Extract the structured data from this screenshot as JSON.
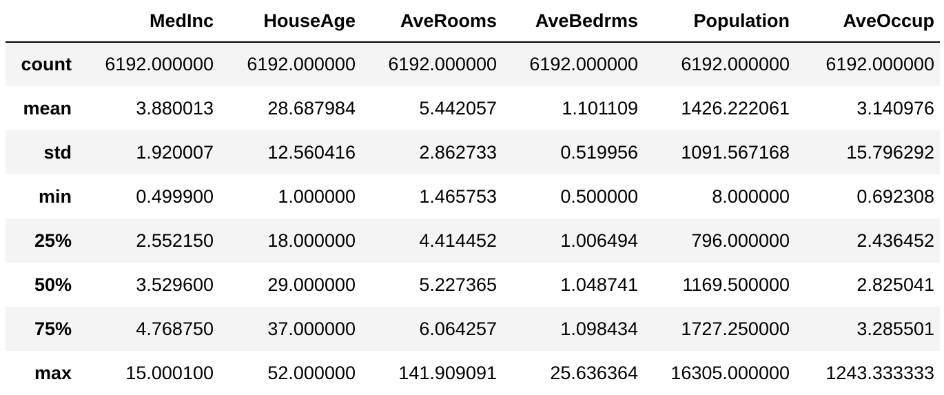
{
  "table": {
    "columns": [
      "MedInc",
      "HouseAge",
      "AveRooms",
      "AveBedrms",
      "Population",
      "AveOccup"
    ],
    "rows": [
      {
        "label": "count",
        "values": [
          "6192.000000",
          "6192.000000",
          "6192.000000",
          "6192.000000",
          "6192.000000",
          "6192.000000"
        ]
      },
      {
        "label": "mean",
        "values": [
          "3.880013",
          "28.687984",
          "5.442057",
          "1.101109",
          "1426.222061",
          "3.140976"
        ]
      },
      {
        "label": "std",
        "values": [
          "1.920007",
          "12.560416",
          "2.862733",
          "0.519956",
          "1091.567168",
          "15.796292"
        ]
      },
      {
        "label": "min",
        "values": [
          "0.499900",
          "1.000000",
          "1.465753",
          "0.500000",
          "8.000000",
          "0.692308"
        ]
      },
      {
        "label": "25%",
        "values": [
          "2.552150",
          "18.000000",
          "4.414452",
          "1.006494",
          "796.000000",
          "2.436452"
        ]
      },
      {
        "label": "50%",
        "values": [
          "3.529600",
          "29.000000",
          "5.227365",
          "1.048741",
          "1169.500000",
          "2.825041"
        ]
      },
      {
        "label": "75%",
        "values": [
          "4.768750",
          "37.000000",
          "6.064257",
          "1.098434",
          "1727.250000",
          "3.285501"
        ]
      },
      {
        "label": "max",
        "values": [
          "15.000100",
          "52.000000",
          "141.909091",
          "25.636364",
          "16305.000000",
          "1243.333333"
        ]
      }
    ]
  }
}
